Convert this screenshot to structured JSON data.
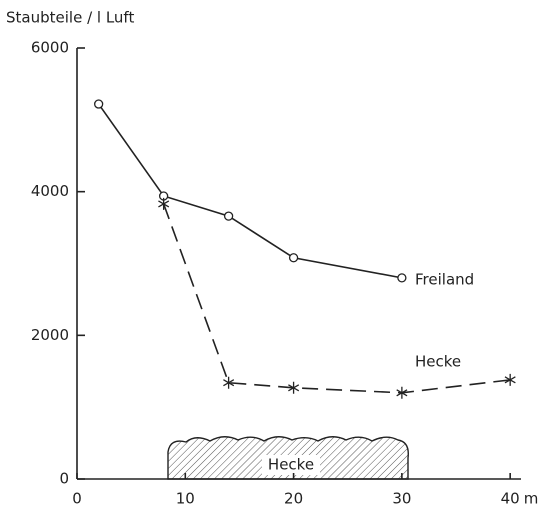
{
  "chart_data": {
    "type": "line",
    "y_label": "Staubteile / l Luft",
    "x_unit": "m",
    "annotation": "Hecke",
    "xlim": [
      0,
      41
    ],
    "xticks": [
      0,
      10,
      20,
      30,
      40
    ],
    "ylim": [
      0,
      6000
    ],
    "yticks": [
      0,
      2000,
      4000,
      6000
    ],
    "series": [
      {
        "name": "Freiland",
        "color": "#222222",
        "line_style": "solid",
        "marker": "circle",
        "x": [
          2,
          8,
          14,
          20,
          30
        ],
        "values": [
          5220,
          3940,
          3660,
          3080,
          2800
        ]
      },
      {
        "name": "Hecke",
        "color": "#222222",
        "line_style": "dashed",
        "marker": "star",
        "x": [
          8,
          14,
          20,
          30,
          40
        ],
        "values": [
          3830,
          1340,
          1270,
          1200,
          1380
        ]
      }
    ]
  }
}
